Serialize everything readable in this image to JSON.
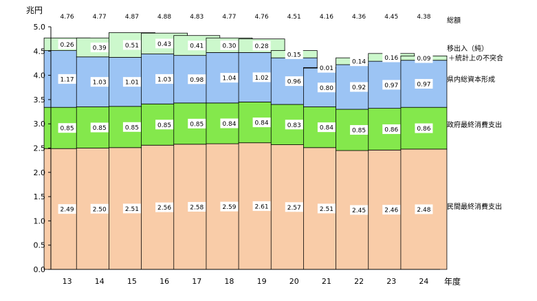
{
  "chart_data": {
    "type": "bar",
    "stacked": true,
    "unit_label": "兆円",
    "x_axis_label": "年度",
    "categories": [
      "13",
      "14",
      "15",
      "16",
      "17",
      "18",
      "19",
      "20",
      "21",
      "22",
      "23",
      "24"
    ],
    "ylim": [
      0,
      5.0
    ],
    "yticks": [
      "0.0",
      "0.5",
      "1.0",
      "1.5",
      "2.0",
      "2.5",
      "3.0",
      "3.5",
      "4.0",
      "4.5",
      "5.0"
    ],
    "grid": false,
    "legend_placement": "right",
    "totals_label": "総額",
    "totals": [
      4.76,
      4.77,
      4.87,
      4.88,
      4.83,
      4.77,
      4.76,
      4.51,
      4.16,
      4.36,
      4.45,
      4.38
    ],
    "series": [
      {
        "name": "民間最終消費支出",
        "color": "#f9cca8",
        "values": [
          2.49,
          2.5,
          2.51,
          2.56,
          2.58,
          2.59,
          2.61,
          2.57,
          2.51,
          2.45,
          2.46,
          2.48
        ],
        "labels": [
          "2.49",
          "2.50",
          "2.51",
          "2.56",
          "2.58",
          "2.59",
          "2.61",
          "2.57",
          "2.51",
          "2.45",
          "2.46",
          "2.48"
        ]
      },
      {
        "name": "政府最終消費支出",
        "color": "#84e84c",
        "values": [
          0.85,
          0.85,
          0.85,
          0.85,
          0.85,
          0.84,
          0.84,
          0.83,
          0.84,
          0.85,
          0.86,
          0.86
        ],
        "labels": [
          "0.85",
          "0.85",
          "0.85",
          "0.85",
          "0.85",
          "0.84",
          "0.84",
          "0.83",
          "0.84",
          "0.85",
          "0.86",
          "0.86"
        ]
      },
      {
        "name": "県内総資本形成",
        "color": "#9cc4f4",
        "values": [
          1.17,
          1.03,
          1.01,
          1.03,
          0.98,
          1.04,
          1.02,
          0.96,
          0.8,
          0.92,
          0.97,
          0.97
        ],
        "labels": [
          "1.17",
          "1.03",
          "1.01",
          "1.03",
          "0.98",
          "1.04",
          "1.02",
          "0.96",
          "0.80",
          "0.92",
          "0.97",
          "0.97"
        ]
      },
      {
        "name": "移出入（純）＋統計上の不突合",
        "color": "#ccf8cc",
        "values": [
          0.26,
          0.39,
          0.51,
          0.43,
          0.41,
          0.3,
          0.28,
          0.15,
          0.01,
          0.14,
          0.16,
          0.09
        ],
        "labels": [
          "0.26",
          "0.39",
          "0.51",
          "0.43",
          "0.41",
          "0.30",
          "0.28",
          "0.15",
          "0.01",
          "0.14",
          "0.16",
          "0.09"
        ]
      }
    ],
    "legend": {
      "net_exports_line1": "移出入（純）",
      "net_exports_line2": "＋統計上の不突合",
      "capital": "県内総資本形成",
      "government": "政府最終消費支出",
      "private": "民間最終消費支出"
    }
  }
}
